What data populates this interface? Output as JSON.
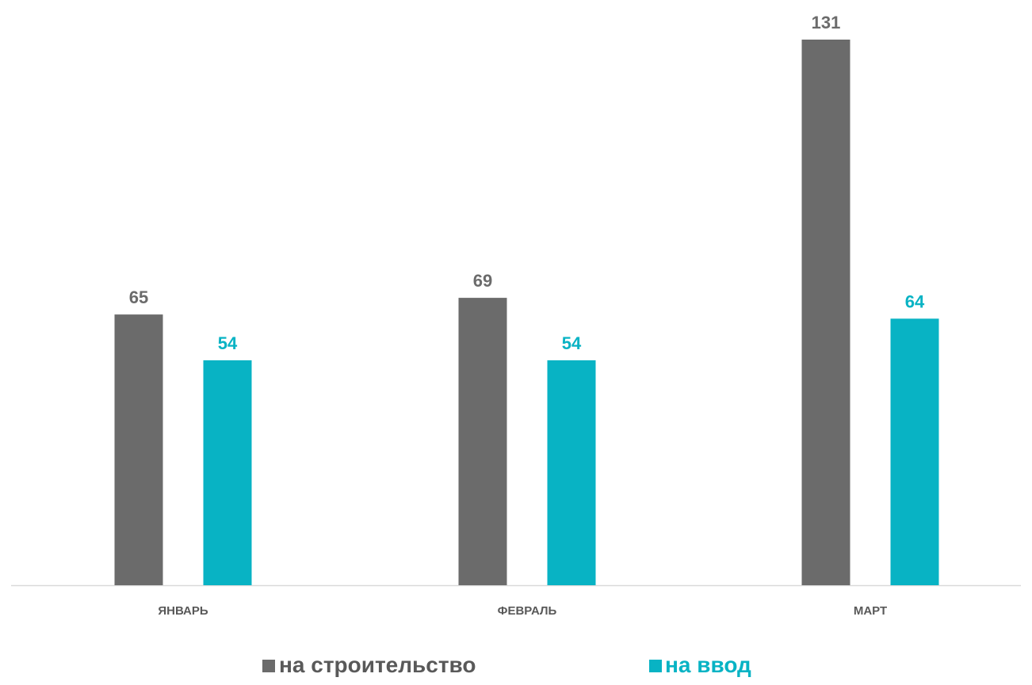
{
  "chart_data": {
    "type": "bar",
    "title": "",
    "xlabel": "",
    "ylabel": "",
    "categories": [
      "ЯНВАРЬ",
      "ФЕВРАЛЬ",
      "МАРТ"
    ],
    "series": [
      {
        "name": "на строительство",
        "values": [
          65,
          69,
          131
        ],
        "color": "#6b6b6b"
      },
      {
        "name": "на ввод",
        "values": [
          54,
          54,
          64
        ],
        "color": "#08b3c4"
      }
    ],
    "ylim": [
      0,
      131
    ],
    "grid": false,
    "legend": "bottom-center",
    "data_labels": true,
    "axis_line_color": "#d9d9d9",
    "category_label_color": "#595959"
  }
}
